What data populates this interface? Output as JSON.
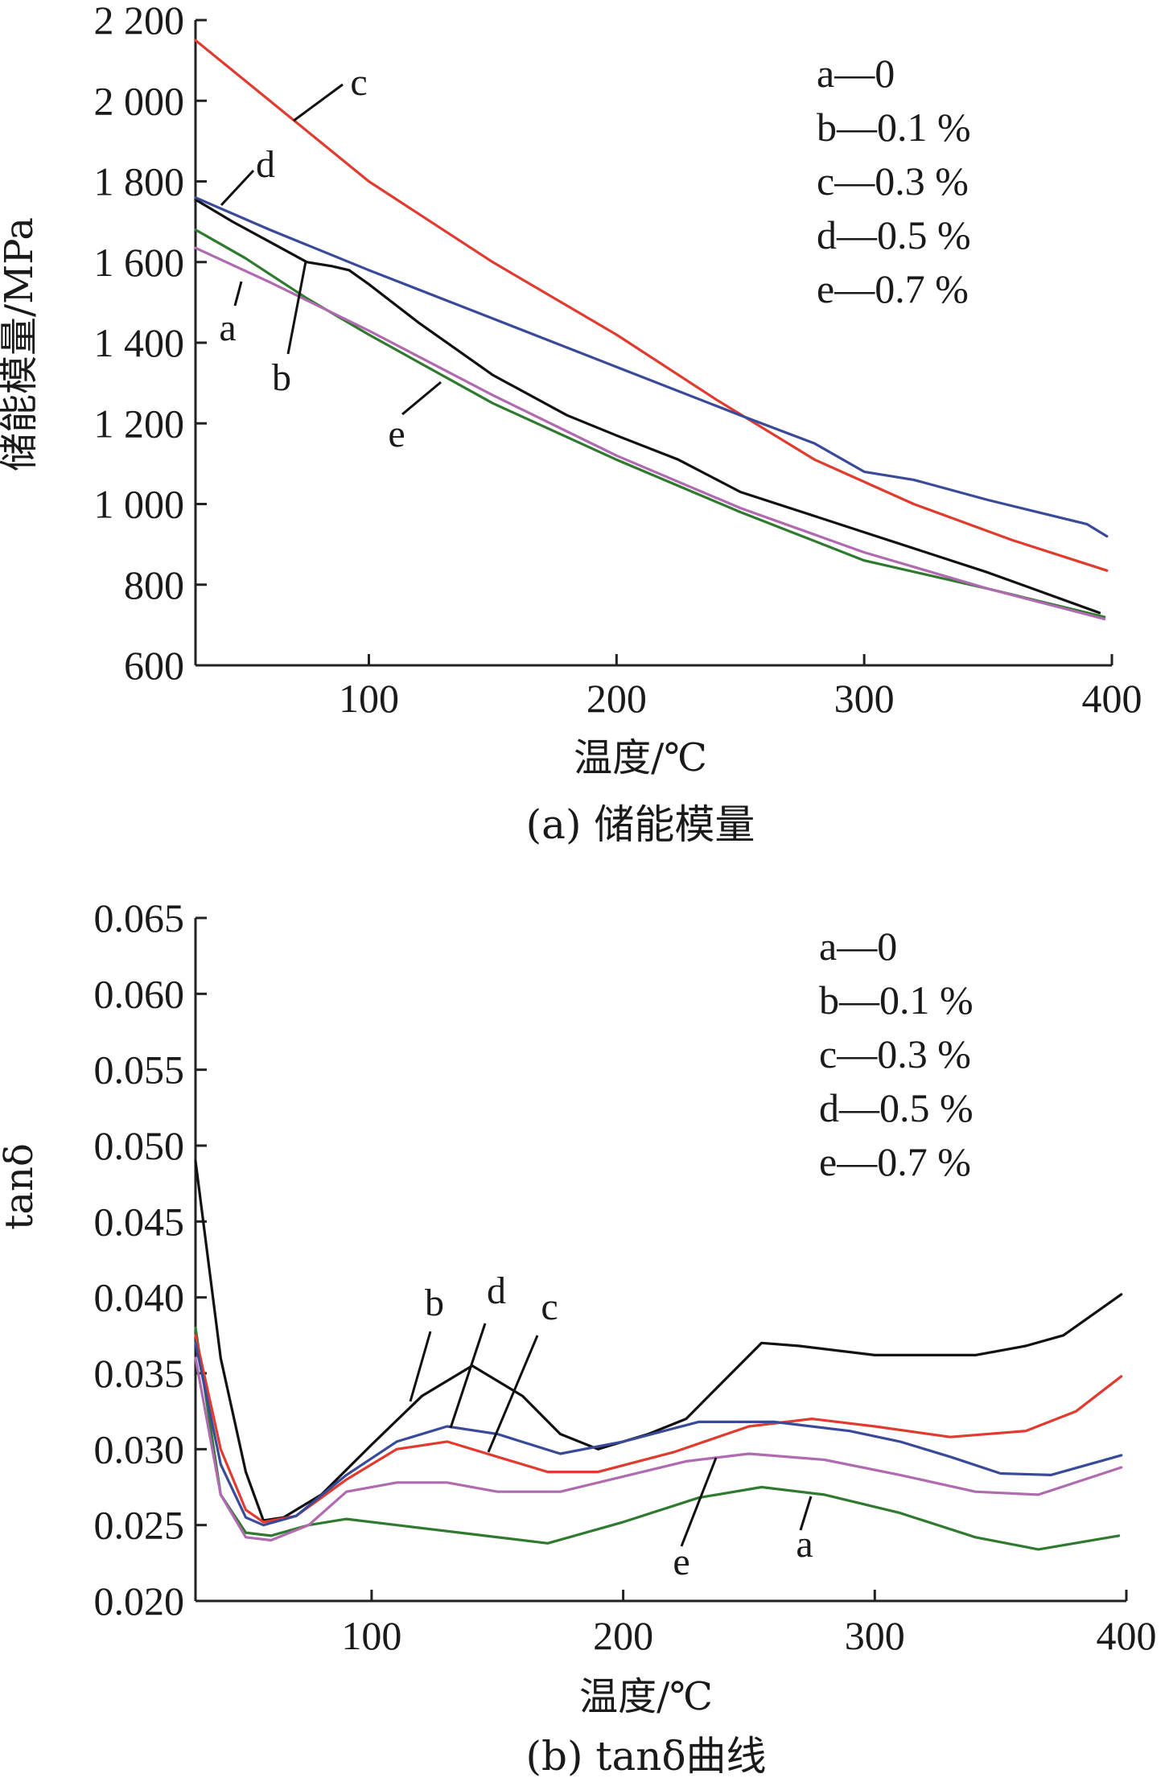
{
  "chart_data": [
    {
      "type": "line",
      "caption": "(a) 储能模量",
      "xlabel": "温度/℃",
      "ylabel": "储能模量/MPa",
      "xlim": [
        30,
        400
      ],
      "ylim": [
        600,
        2200
      ],
      "x_ticks": [
        100,
        200,
        300,
        400
      ],
      "x_tick_labels": [
        "100",
        "200",
        "300",
        "400"
      ],
      "y_ticks": [
        600,
        800,
        1000,
        1200,
        1400,
        1600,
        1800,
        2000,
        2200
      ],
      "y_tick_labels": [
        "600",
        "800",
        "1 000",
        "1 200",
        "1 400",
        "1 600",
        "1 800",
        "2 000",
        "2 200"
      ],
      "grid": false,
      "legend_position": "top-right",
      "legend": [
        "a—0",
        "b—0.1 %",
        "c—0.3 %",
        "d—0.5 %",
        "e—0.7 %"
      ],
      "series": [
        {
          "label": "a",
          "color": "#2f7a2f",
          "x": [
            30,
            50,
            75,
            100,
            150,
            200,
            250,
            300,
            350,
            397
          ],
          "y": [
            1680,
            1610,
            1510,
            1420,
            1250,
            1110,
            980,
            860,
            790,
            720
          ]
        },
        {
          "label": "b",
          "color": "#111111",
          "x": [
            30,
            45,
            60,
            75,
            85,
            92,
            100,
            120,
            150,
            180,
            200,
            225,
            250,
            275,
            300,
            350,
            395
          ],
          "y": [
            1755,
            1700,
            1650,
            1600,
            1590,
            1580,
            1545,
            1450,
            1320,
            1220,
            1170,
            1110,
            1030,
            980,
            930,
            830,
            730
          ]
        },
        {
          "label": "c",
          "color": "#e03b2e",
          "x": [
            30,
            60,
            100,
            150,
            200,
            240,
            280,
            320,
            360,
            398
          ],
          "y": [
            2150,
            2000,
            1800,
            1600,
            1420,
            1260,
            1110,
            1000,
            910,
            835
          ]
        },
        {
          "label": "d",
          "color": "#3a4a9a",
          "x": [
            30,
            60,
            100,
            150,
            200,
            250,
            280,
            300,
            320,
            350,
            390,
            398
          ],
          "y": [
            1760,
            1680,
            1580,
            1460,
            1340,
            1220,
            1150,
            1080,
            1060,
            1010,
            950,
            920
          ]
        },
        {
          "label": "e",
          "color": "#b06ab0",
          "x": [
            30,
            60,
            100,
            150,
            200,
            250,
            300,
            350,
            397
          ],
          "y": [
            1635,
            1550,
            1430,
            1270,
            1120,
            990,
            880,
            790,
            715
          ]
        }
      ],
      "callouts": [
        "a",
        "b",
        "c",
        "d",
        "e"
      ]
    },
    {
      "type": "line",
      "caption": "(b) tanδ曲线",
      "xlabel": "温度/℃",
      "ylabel": "tanδ",
      "xlim": [
        30,
        400
      ],
      "ylim": [
        0.02,
        0.065
      ],
      "x_ticks": [
        100,
        200,
        300,
        400
      ],
      "x_tick_labels": [
        "100",
        "200",
        "300",
        "400"
      ],
      "y_ticks": [
        0.02,
        0.025,
        0.03,
        0.035,
        0.04,
        0.045,
        0.05,
        0.055,
        0.06,
        0.065
      ],
      "y_tick_labels": [
        "0.020",
        "0.025",
        "0.030",
        "0.035",
        "0.040",
        "0.045",
        "0.050",
        "0.055",
        "0.060",
        "0.065"
      ],
      "grid": false,
      "legend_position": "top-right",
      "legend": [
        "a—0",
        "b—0.1 %",
        "c—0.3 %",
        "d—0.5 %",
        "e—0.7 %"
      ],
      "series": [
        {
          "label": "a",
          "color": "#2f7a2f",
          "x": [
            30,
            40,
            50,
            60,
            75,
            90,
            110,
            140,
            170,
            200,
            230,
            255,
            280,
            310,
            340,
            365,
            397
          ],
          "y": [
            0.038,
            0.027,
            0.0245,
            0.0243,
            0.025,
            0.0254,
            0.025,
            0.0244,
            0.0238,
            0.0252,
            0.0268,
            0.0275,
            0.027,
            0.0258,
            0.0242,
            0.0234,
            0.0243
          ]
        },
        {
          "label": "b",
          "color": "#111111",
          "x": [
            30,
            40,
            50,
            57,
            65,
            80,
            100,
            120,
            140,
            160,
            175,
            190,
            210,
            225,
            240,
            255,
            270,
            300,
            340,
            360,
            375,
            398
          ],
          "y": [
            0.049,
            0.036,
            0.0285,
            0.0253,
            0.0255,
            0.027,
            0.0303,
            0.0335,
            0.0355,
            0.0335,
            0.031,
            0.03,
            0.031,
            0.032,
            0.0345,
            0.037,
            0.0368,
            0.0362,
            0.0362,
            0.0368,
            0.0375,
            0.0402
          ]
        },
        {
          "label": "c",
          "color": "#e03b2e",
          "x": [
            30,
            40,
            50,
            57,
            70,
            90,
            110,
            130,
            150,
            170,
            190,
            220,
            250,
            275,
            300,
            330,
            360,
            380,
            398
          ],
          "y": [
            0.0375,
            0.03,
            0.026,
            0.0252,
            0.0256,
            0.028,
            0.03,
            0.0305,
            0.0295,
            0.0285,
            0.0285,
            0.0298,
            0.0315,
            0.032,
            0.0315,
            0.0308,
            0.0312,
            0.0325,
            0.0348
          ]
        },
        {
          "label": "d",
          "color": "#3a4a9a",
          "x": [
            30,
            40,
            50,
            57,
            70,
            90,
            110,
            130,
            150,
            175,
            200,
            230,
            260,
            290,
            310,
            330,
            350,
            370,
            398
          ],
          "y": [
            0.037,
            0.029,
            0.0255,
            0.025,
            0.0256,
            0.0283,
            0.0305,
            0.0315,
            0.031,
            0.0297,
            0.0305,
            0.0318,
            0.0318,
            0.0312,
            0.0305,
            0.0295,
            0.0284,
            0.0283,
            0.0296
          ]
        },
        {
          "label": "e",
          "color": "#b06ab0",
          "x": [
            30,
            40,
            50,
            60,
            75,
            90,
            110,
            130,
            150,
            175,
            200,
            225,
            250,
            280,
            310,
            340,
            365,
            398
          ],
          "y": [
            0.036,
            0.027,
            0.0242,
            0.024,
            0.025,
            0.0272,
            0.0278,
            0.0278,
            0.0272,
            0.0272,
            0.0282,
            0.0292,
            0.0297,
            0.0293,
            0.0283,
            0.0272,
            0.027,
            0.0288
          ]
        }
      ],
      "callouts": [
        "b",
        "d",
        "c",
        "e",
        "a"
      ]
    }
  ]
}
